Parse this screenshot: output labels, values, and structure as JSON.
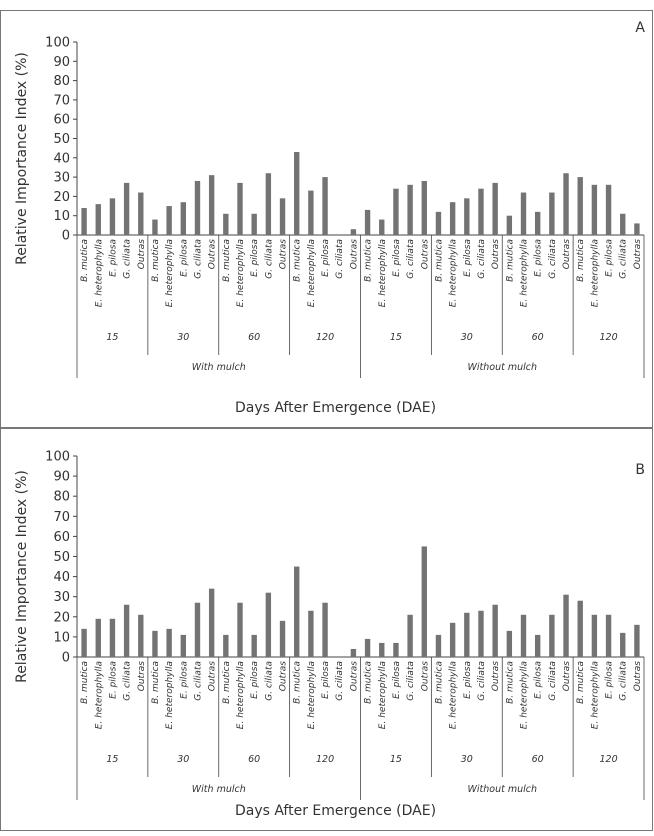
{
  "chart_data": [
    {
      "type": "bar",
      "panel_letter": "A",
      "ylabel": "Relative Importance Index (%)",
      "xlabel": "Days After Emergence (DAE)",
      "ylim": [
        0,
        100
      ],
      "yticks": [
        0,
        10,
        20,
        30,
        40,
        50,
        60,
        70,
        80,
        90,
        100
      ],
      "grid": false,
      "bar_color": "#737373",
      "categories": [
        "B. mutica",
        "E. heterophylla",
        "E. pilosa",
        "G. ciliata",
        "Outras"
      ],
      "days": [
        "15",
        "30",
        "60",
        "120"
      ],
      "groups": [
        {
          "name": "With mulch",
          "values": [
            [
              14,
              16,
              19,
              27,
              22
            ],
            [
              8,
              15,
              17,
              28,
              31
            ],
            [
              11,
              27,
              11,
              32,
              19
            ],
            [
              43,
              23,
              30,
              0,
              3
            ]
          ]
        },
        {
          "name": "Without mulch",
          "values": [
            [
              13,
              8,
              24,
              26,
              28
            ],
            [
              12,
              17,
              19,
              24,
              27
            ],
            [
              10,
              22,
              12,
              22,
              32
            ],
            [
              30,
              26,
              26,
              11,
              6
            ]
          ]
        }
      ]
    },
    {
      "type": "bar",
      "panel_letter": "B",
      "ylabel": "Relative Importance Index (%)",
      "xlabel": "Days After Emergence (DAE)",
      "ylim": [
        0,
        100
      ],
      "yticks": [
        0,
        10,
        20,
        30,
        40,
        50,
        60,
        70,
        80,
        90,
        100
      ],
      "grid": false,
      "bar_color": "#737373",
      "categories": [
        "B. mutica",
        "E. heterophylla",
        "E. pilosa",
        "G. ciliata",
        "Outras"
      ],
      "days": [
        "15",
        "30",
        "60",
        "120"
      ],
      "groups": [
        {
          "name": "With mulch",
          "values": [
            [
              14,
              19,
              19,
              26,
              21
            ],
            [
              13,
              14,
              11,
              27,
              34
            ],
            [
              11,
              27,
              11,
              32,
              18
            ],
            [
              45,
              23,
              27,
              0,
              4
            ]
          ]
        },
        {
          "name": "Without mulch",
          "values": [
            [
              9,
              7,
              7,
              21,
              55
            ],
            [
              11,
              17,
              22,
              23,
              26
            ],
            [
              13,
              21,
              11,
              21,
              31
            ],
            [
              28,
              21,
              21,
              12,
              16
            ]
          ]
        }
      ]
    }
  ]
}
